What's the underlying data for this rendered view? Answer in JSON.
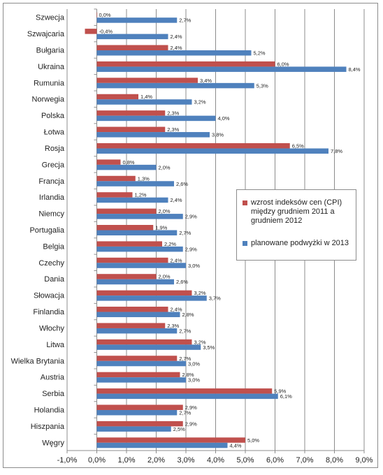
{
  "chart_data": {
    "type": "bar",
    "orientation": "horizontal",
    "categories": [
      "Szwecja",
      "Szwajcaria",
      "Bułgaria",
      "Ukraina",
      "Rumunia",
      "Norwegia",
      "Polska",
      "Łotwa",
      "Rosja",
      "Grecja",
      "Francja",
      "Irlandia",
      "Niemcy",
      "Portugalia",
      "Belgia",
      "Czechy",
      "Dania",
      "Słowacja",
      "Finlandia",
      "Włochy",
      "Litwa",
      "Wielka Brytania",
      "Austria",
      "Serbia",
      "Holandia",
      "Hiszpania",
      "Węgry"
    ],
    "series": [
      {
        "name": "wzrost indeksów cen (CPI) między grudniem 2011 a grudniem 2012",
        "color": "#c0504d",
        "values": [
          0.0,
          -0.4,
          2.4,
          6.0,
          3.4,
          1.4,
          2.3,
          2.3,
          6.5,
          0.8,
          1.3,
          1.2,
          2.0,
          1.9,
          2.2,
          2.4,
          2.0,
          3.2,
          2.4,
          2.3,
          3.2,
          2.7,
          2.8,
          5.9,
          2.9,
          2.9,
          5.0
        ],
        "labels": [
          "0,0%",
          "-0,4%",
          "2,4%",
          "6,0%",
          "3,4%",
          "1,4%",
          "2,3%",
          "2,3%",
          "6,5%",
          "0,8%",
          "1,3%",
          "1,2%",
          "2,0%",
          "1,9%",
          "2,2%",
          "2,4%",
          "2,0%",
          "3,2%",
          "2,4%",
          "2,3%",
          "3,2%",
          "2,7%",
          "2,8%",
          "5,9%",
          "2,9%",
          "2,9%",
          "5,0%"
        ]
      },
      {
        "name": "planowane podwyżki w 2013",
        "color": "#4f81bd",
        "values": [
          2.7,
          2.4,
          5.2,
          8.4,
          5.3,
          3.2,
          4.0,
          3.8,
          7.8,
          2.0,
          2.6,
          2.4,
          2.9,
          2.7,
          2.9,
          3.0,
          2.6,
          3.7,
          2.8,
          2.7,
          3.5,
          3.0,
          3.0,
          6.1,
          2.7,
          2.5,
          4.4
        ],
        "labels": [
          "2,7%",
          "2,4%",
          "5,2%",
          "8,4%",
          "5,3%",
          "3,2%",
          "4,0%",
          "3,8%",
          "7,8%",
          "2,0%",
          "2,6%",
          "2,4%",
          "2,9%",
          "2,7%",
          "2,9%",
          "3,0%",
          "2,6%",
          "3,7%",
          "2,8%",
          "2,7%",
          "3,5%",
          "3,0%",
          "3,0%",
          "6,1%",
          "2,7%",
          "2,5%",
          "4,4%"
        ]
      }
    ],
    "xlim": [
      -1.0,
      9.0
    ],
    "xticks": [
      -1,
      0,
      1,
      2,
      3,
      4,
      5,
      6,
      7,
      8,
      9
    ],
    "xtick_labels": [
      "-1,0%",
      "0,0%",
      "1,0%",
      "2,0%",
      "3,0%",
      "4,0%",
      "5,0%",
      "6,0%",
      "7,0%",
      "8,0%",
      "9,0%"
    ],
    "grid": "vertical",
    "legend_position": "right-middle",
    "title": "",
    "xlabel": "",
    "ylabel": ""
  }
}
